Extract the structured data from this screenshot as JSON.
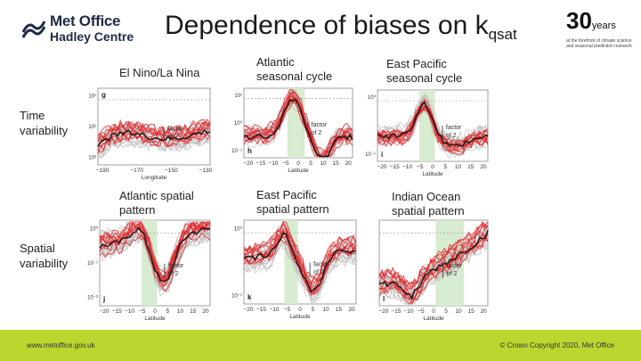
{
  "header": {
    "logo_line1": "Met Office",
    "logo_line2": "Hadley Centre",
    "title_main": "Dependence of biases on k",
    "title_sub": "qsat",
    "years_number": "30",
    "years_word": "years",
    "years_tagline": "at the forefront of climate science and seasonal prediction research"
  },
  "row_labels": {
    "time": [
      "Time",
      "variability"
    ],
    "spatial": [
      "Spatial",
      "variability"
    ]
  },
  "column_labels": {
    "elnino": "El Nino/La Nina",
    "atl_cycle": [
      "Atlantic",
      "seasonal cycle"
    ],
    "ep_cycle": [
      "East Pacific",
      "seasonal cycle"
    ],
    "atl_spatial": [
      "Atlantic spatial",
      "pattern"
    ],
    "ep_spatial": [
      "East Pacific",
      "spatial pattern"
    ],
    "io_spatial": [
      "Indian Ocean",
      "spatial pattern"
    ]
  },
  "panels": [
    {
      "letter": "g",
      "xlabel": "Longitude",
      "xticks": [
        "−190",
        "−170",
        "−150",
        "−130"
      ],
      "yticks": [
        "10¹",
        "10²",
        "10³"
      ],
      "annotation": [
        "factor",
        "of 2"
      ]
    },
    {
      "letter": "h",
      "xlabel": "Latitude",
      "xticks": [
        "−20",
        "−15",
        "−10",
        "−5",
        "0",
        "5",
        "10",
        "15",
        "20"
      ],
      "yticks": [
        "10¹",
        "10⁰",
        "10⁻¹"
      ],
      "annotation": [
        "factor",
        "of 2"
      ]
    },
    {
      "letter": "i",
      "xlabel": "Latitude",
      "xticks": [
        "−20",
        "−15",
        "−10",
        "−5",
        "0",
        "5",
        "10",
        "15",
        "20"
      ],
      "yticks": [
        "10⁰",
        "10⁻¹"
      ],
      "annotation": [
        "factor",
        "of 2"
      ]
    },
    {
      "letter": "j",
      "xlabel": "Latitude",
      "xticks": [
        "−20",
        "−15",
        "−10",
        "−5",
        "0",
        "5",
        "10",
        "15",
        "20"
      ],
      "yticks": [
        "10⁰",
        "10⁻¹",
        "10⁻²"
      ],
      "annotation": [
        "factor",
        "of 2"
      ]
    },
    {
      "letter": "k",
      "xlabel": "Latitude",
      "xticks": [
        "−20",
        "−15",
        "−10",
        "−5",
        "0",
        "5",
        "10",
        "15",
        "20"
      ],
      "yticks": [
        "10⁰",
        "10⁻¹"
      ],
      "annotation": [
        "factor",
        "of 2"
      ]
    },
    {
      "letter": "l",
      "xlabel": "Latitude",
      "xticks": [
        "−20",
        "−15",
        "−10",
        "−5",
        "0",
        "5",
        "10",
        "15",
        "20"
      ],
      "yticks": [],
      "annotation": [
        "factor",
        "of 2"
      ]
    }
  ],
  "footer": {
    "url": "www.metoffice.gov.uk",
    "copyright": "© Crown Copyright 2020, Met Office"
  },
  "colors": {
    "accent_bar": "#bcd630",
    "band": "#d7ecd0",
    "ensemble_grey": "#b8b8b8",
    "ensemble_red": "#e8282b",
    "observed": "#111111",
    "logo_blue": "#1f2a44"
  }
}
